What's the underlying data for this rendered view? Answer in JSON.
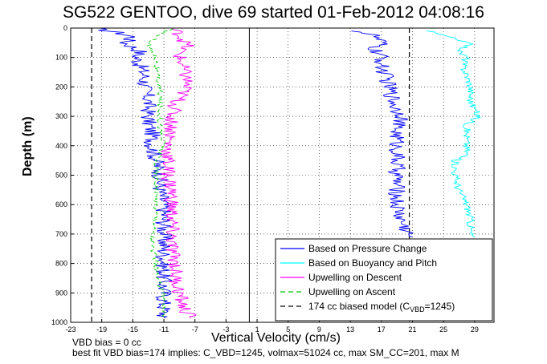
{
  "chart_data": {
    "type": "line",
    "title": "SG522 GENTOO, dive 69 started 01-Feb-2012 04:08:16",
    "xlabel": "Vertical Velocity (cm/s)",
    "ylabel": "Depth (m)",
    "xlim": [
      -23,
      31.5
    ],
    "ylim": [
      1000,
      0
    ],
    "x_ticks": [
      -23,
      -19,
      -15,
      -11,
      -7,
      -3,
      1,
      5,
      9,
      13,
      17,
      21,
      25,
      29
    ],
    "y_ticks": [
      0,
      100,
      200,
      300,
      400,
      500,
      600,
      700,
      800,
      900,
      1000
    ],
    "grid": true,
    "legend_position": "bottom-right",
    "reference_lines": {
      "zero_line_x": 0,
      "biased_model_x": [
        -20.3,
        20.6
      ]
    },
    "series": [
      {
        "name": "Based on Pressure Change",
        "color": "#0000ff",
        "style": "solid",
        "depth": [
          0,
          15,
          30,
          50,
          80,
          100,
          130,
          160,
          200,
          240,
          280,
          320,
          360,
          400,
          450,
          500,
          550,
          600,
          650,
          700,
          750,
          800,
          850,
          900,
          950,
          985
        ],
        "values": [
          -20,
          -17,
          -15,
          -16,
          -14,
          -14.5,
          -14,
          -13.5,
          -13.5,
          -13,
          -13,
          -13,
          -12.5,
          -12.5,
          -12,
          -11.5,
          -11.5,
          -11,
          -11,
          -11,
          -11,
          -11,
          -11,
          -11,
          -11,
          -11
        ]
      },
      {
        "name": "Based on Pressure Change",
        "color": "#0000ff",
        "style": "solid",
        "depth": [
          10,
          25,
          50,
          70,
          100,
          130,
          160,
          200,
          240,
          280,
          300,
          330,
          380,
          450,
          500,
          550,
          600,
          650,
          700,
          710
        ],
        "values": [
          14,
          16,
          17,
          16,
          17,
          17,
          17.5,
          18,
          18.5,
          19,
          20,
          19,
          19,
          19,
          19,
          19,
          19,
          19.5,
          20.5,
          21
        ]
      },
      {
        "name": "Based on Buoyancy and Pitch",
        "color": "#00ffff",
        "style": "solid",
        "depth": [
          10,
          30,
          50,
          80,
          100,
          130,
          160,
          200,
          250,
          300,
          330,
          370,
          430,
          450,
          500,
          550,
          600,
          650,
          700,
          710
        ],
        "values": [
          23,
          25.5,
          28.5,
          27,
          28,
          27.5,
          28,
          28.5,
          28.5,
          29.5,
          28,
          28,
          28,
          26.5,
          26.5,
          27,
          28,
          28.5,
          28.5,
          29
        ]
      },
      {
        "name": "Upwelling on Descent",
        "color": "#ff00ff",
        "style": "solid",
        "depth": [
          0,
          20,
          40,
          60,
          80,
          100,
          140,
          180,
          220,
          260,
          300,
          350,
          400,
          450,
          500,
          550,
          600,
          650,
          700,
          750,
          800,
          850,
          900,
          950,
          985
        ],
        "values": [
          -10,
          -9,
          -8.5,
          -8,
          -9,
          -9,
          -8.5,
          -8,
          -8.5,
          -9.5,
          -10,
          -10,
          -10.5,
          -10.5,
          -10.5,
          -10,
          -10,
          -10,
          -10,
          -10,
          -9.5,
          -9.5,
          -9,
          -8.5,
          -7.5
        ]
      },
      {
        "name": "Upwelling on Ascent",
        "color": "#00cc00",
        "style": "dashed",
        "depth": [
          0,
          30,
          60,
          100,
          150,
          200,
          250,
          300,
          350,
          400,
          450,
          500,
          550,
          600,
          650,
          700,
          750,
          800,
          850,
          900,
          950,
          985
        ],
        "values": [
          -10,
          -12,
          -13,
          -12,
          -12,
          -11.5,
          -11.5,
          -11.5,
          -11.5,
          -11,
          -12,
          -12,
          -12,
          -12,
          -12,
          -12.5,
          -12.5,
          -12,
          -12,
          -11,
          -11,
          -11
        ]
      },
      {
        "name": "174 cc biased model (C_VBD=1245)",
        "color": "#000000",
        "style": "dashed",
        "depth": [
          0,
          1000
        ],
        "values": [
          -20.3,
          -20.3
        ]
      }
    ]
  },
  "legend": {
    "items": [
      {
        "label": "Based on Pressure Change",
        "color": "#0000ff",
        "dash": ""
      },
      {
        "label": "Based on Buoyancy and Pitch",
        "color": "#00ffff",
        "dash": ""
      },
      {
        "label": "Upwelling on Descent",
        "color": "#ff00ff",
        "dash": ""
      },
      {
        "label": "Upwelling on Ascent",
        "color": "#00cc00",
        "dash": "6,4"
      }
    ],
    "model_prefix": "174 cc biased model (C",
    "model_sub": "VBD",
    "model_suffix": "=1245)"
  },
  "notes": {
    "line1": "VBD bias = 0 cc",
    "line2": "best fit VBD bias=174 implies: C_VBD=1245, volmax=51024 cc, max SM_CC=201, max M"
  }
}
